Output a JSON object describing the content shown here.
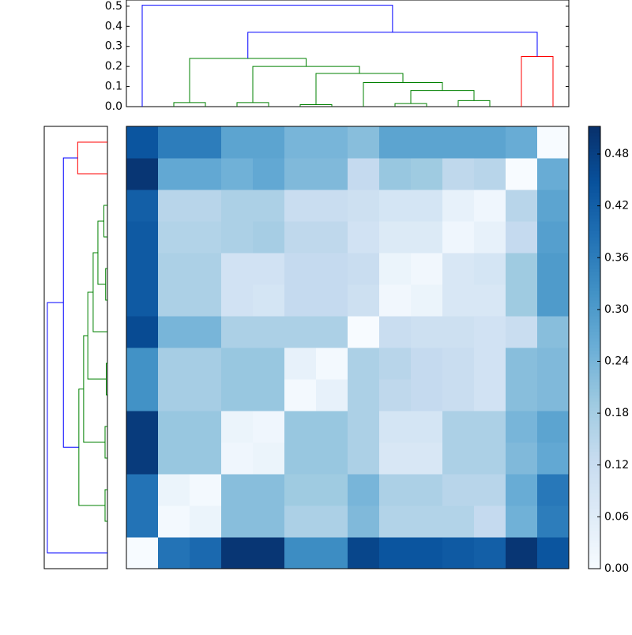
{
  "chart_data": {
    "type": "clustermap",
    "colormap": "Blues",
    "clim": [
      0,
      0.512
    ],
    "cticks": [
      {
        "value": 0,
        "label": "0.00"
      },
      {
        "value": 0.06,
        "label": "0.06"
      },
      {
        "value": 0.12,
        "label": "0.12"
      },
      {
        "value": 0.18,
        "label": "0.18"
      },
      {
        "value": 0.24,
        "label": "0.24"
      },
      {
        "value": 0.3,
        "label": "0.30"
      },
      {
        "value": 0.36,
        "label": "0.36"
      },
      {
        "value": 0.42,
        "label": "0.42"
      },
      {
        "value": 0.48,
        "label": "0.48"
      }
    ],
    "ylim": [
      0,
      0.531
    ],
    "yticks": [
      {
        "value": 0,
        "label": "0.0"
      },
      0.1,
      0.2,
      0.3,
      0.4,
      0.5
    ],
    "matrix": [
      [
        0,
        0.38,
        0.4,
        0.5,
        0.5,
        0.33,
        0.33,
        0.47,
        0.44,
        0.44,
        0.43,
        0.42,
        0.5,
        0.44
      ],
      [
        0.38,
        0.01,
        0.03,
        0.22,
        0.22,
        0.17,
        0.17,
        0.23,
        0.16,
        0.16,
        0.16,
        0.13,
        0.25,
        0.36
      ],
      [
        0.38,
        0.03,
        0.01,
        0.22,
        0.22,
        0.19,
        0.19,
        0.24,
        0.17,
        0.17,
        0.15,
        0.15,
        0.26,
        0.37
      ],
      [
        0.49,
        0.2,
        0.2,
        0.02,
        0.03,
        0.2,
        0.2,
        0.17,
        0.08,
        0.08,
        0.17,
        0.17,
        0.23,
        0.27
      ],
      [
        0.49,
        0.2,
        0.2,
        0.03,
        0.02,
        0.2,
        0.2,
        0.17,
        0.09,
        0.09,
        0.17,
        0.17,
        0.24,
        0.28
      ],
      [
        0.32,
        0.18,
        0.18,
        0.2,
        0.2,
        0.01,
        0.04,
        0.17,
        0.14,
        0.13,
        0.12,
        0.1,
        0.22,
        0.23
      ],
      [
        0.32,
        0.18,
        0.18,
        0.2,
        0.2,
        0.04,
        0.01,
        0.17,
        0.15,
        0.13,
        0.12,
        0.1,
        0.22,
        0.23
      ],
      [
        0.46,
        0.24,
        0.24,
        0.17,
        0.17,
        0.17,
        0.17,
        0,
        0.12,
        0.11,
        0.11,
        0.1,
        0.12,
        0.22
      ],
      [
        0.43,
        0.17,
        0.17,
        0.1,
        0.09,
        0.13,
        0.13,
        0.11,
        0.015,
        0.03,
        0.08,
        0.08,
        0.19,
        0.3
      ],
      [
        0.43,
        0.17,
        0.17,
        0.1,
        0.1,
        0.13,
        0.13,
        0.12,
        0.03,
        0.015,
        0.08,
        0.09,
        0.19,
        0.3
      ],
      [
        0.43,
        0.16,
        0.16,
        0.17,
        0.18,
        0.14,
        0.14,
        0.1,
        0.07,
        0.07,
        0.02,
        0.04,
        0.13,
        0.29
      ],
      [
        0.42,
        0.15,
        0.15,
        0.17,
        0.17,
        0.12,
        0.12,
        0.11,
        0.09,
        0.09,
        0.04,
        0.02,
        0.15,
        0.28
      ],
      [
        0.5,
        0.27,
        0.27,
        0.25,
        0.27,
        0.23,
        0.23,
        0.13,
        0.2,
        0.19,
        0.14,
        0.15,
        0,
        0.26
      ],
      [
        0.44,
        0.36,
        0.36,
        0.28,
        0.28,
        0.24,
        0.24,
        0.22,
        0.28,
        0.28,
        0.28,
        0.28,
        0.26,
        0
      ]
    ],
    "links": [
      {
        "x": [
          1,
          1,
          2,
          2
        ],
        "y": [
          0,
          0.02,
          0.02,
          0
        ],
        "color": "#008000"
      },
      {
        "x": [
          3,
          3,
          4,
          4
        ],
        "y": [
          0,
          0.02,
          0.02,
          0
        ],
        "color": "#008000"
      },
      {
        "x": [
          5,
          5,
          6,
          6
        ],
        "y": [
          0,
          0.01,
          0.01,
          0
        ],
        "color": "#008000"
      },
      {
        "x": [
          8,
          8,
          9,
          9
        ],
        "y": [
          0,
          0.015,
          0.015,
          0
        ],
        "color": "#008000"
      },
      {
        "x": [
          10,
          10,
          11,
          11
        ],
        "y": [
          0,
          0.03,
          0.03,
          0
        ],
        "color": "#008000"
      },
      {
        "x": [
          8.5,
          8.5,
          10.5,
          10.5
        ],
        "y": [
          0.015,
          0.08,
          0.08,
          0.03
        ],
        "color": "#008000"
      },
      {
        "x": [
          7,
          7,
          9.5,
          9.5
        ],
        "y": [
          0,
          0.12,
          0.12,
          0.08
        ],
        "color": "#008000"
      },
      {
        "x": [
          5.5,
          5.5,
          8.25,
          8.25
        ],
        "y": [
          0.01,
          0.165,
          0.165,
          0.12
        ],
        "color": "#008000"
      },
      {
        "x": [
          3.5,
          3.5,
          6.875,
          6.875
        ],
        "y": [
          0.02,
          0.2,
          0.2,
          0.165
        ],
        "color": "#008000"
      },
      {
        "x": [
          1.5,
          1.5,
          5.1875,
          5.1875
        ],
        "y": [
          0.02,
          0.24,
          0.24,
          0.2
        ],
        "color": "#008000"
      },
      {
        "x": [
          12,
          12,
          13,
          13
        ],
        "y": [
          0,
          0.25,
          0.25,
          0
        ],
        "color": "#ff0000"
      },
      {
        "x": [
          3.34375,
          3.34375,
          12.5,
          12.5
        ],
        "y": [
          0.24,
          0.37,
          0.37,
          0.25
        ],
        "color": "#0000ff"
      },
      {
        "x": [
          0,
          0,
          7.921875,
          7.921875
        ],
        "y": [
          0,
          0.505,
          0.505,
          0.37
        ],
        "color": "#0000ff"
      }
    ]
  }
}
